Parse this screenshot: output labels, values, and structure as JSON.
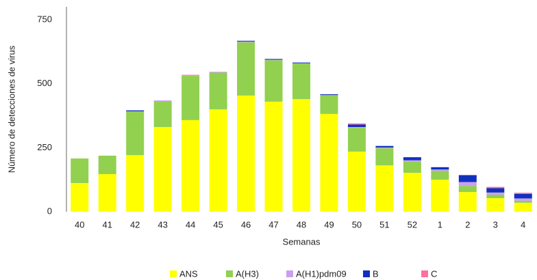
{
  "chart_data": {
    "type": "stacked_bar",
    "y_label": "Número de detecciones de virus",
    "x_label": "Semanas",
    "categories": [
      "40",
      "41",
      "42",
      "43",
      "44",
      "45",
      "46",
      "47",
      "48",
      "49",
      "50",
      "51",
      "52",
      "1",
      "2",
      "3",
      "4"
    ],
    "series": [
      {
        "name": "ANS",
        "color": "#ffff00",
        "values": [
          112,
          147,
          221,
          331,
          358,
          400,
          454,
          430,
          440,
          382,
          235,
          181,
          152,
          125,
          77,
          53,
          35
        ]
      },
      {
        "name": "A(H3)",
        "color": "#92d050",
        "values": [
          96,
          72,
          169,
          101,
          173,
          144,
          208,
          162,
          139,
          74,
          93,
          67,
          43,
          35,
          24,
          14,
          8
        ]
      },
      {
        "name": "A(H1)pdm09",
        "color": "#c9a0f0",
        "values": [
          0,
          0,
          2,
          3,
          2,
          3,
          3,
          2,
          1,
          0,
          3,
          3,
          6,
          5,
          15,
          8,
          9
        ]
      },
      {
        "name": "B",
        "color": "#1030c0",
        "values": [
          0,
          0,
          4,
          0,
          0,
          0,
          3,
          3,
          3,
          3,
          10,
          6,
          12,
          9,
          27,
          17,
          18
        ]
      },
      {
        "name": "C",
        "color": "#ff6fa0",
        "values": [
          0,
          0,
          0,
          0,
          2,
          0,
          0,
          0,
          0,
          0,
          4,
          0,
          0,
          0,
          0,
          5,
          4
        ]
      }
    ],
    "ylim": [
      0,
      750
    ],
    "yticks": [
      0,
      250,
      500,
      750
    ]
  }
}
